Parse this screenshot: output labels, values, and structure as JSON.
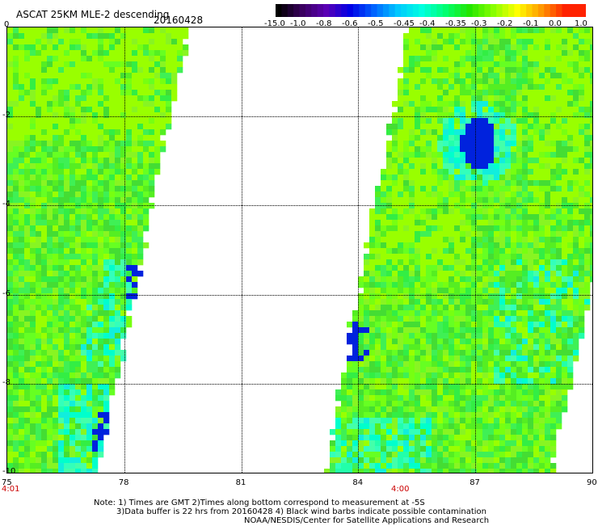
{
  "header": {
    "title": "ASCAT 25KM MLE-2 descending",
    "date": "20160428"
  },
  "colorbar": {
    "labels": [
      "-15.0",
      "-1.0",
      "-0.8",
      "-0.6",
      "-0.5",
      "-0.45",
      "-0.4",
      "-0.35",
      "-0.3",
      "-0.2",
      "-0.1",
      "0.0",
      "1.0"
    ],
    "colors": [
      "#000000",
      "#3a0060",
      "#5a00b4",
      "#0000e6",
      "#0064ff",
      "#00c8ff",
      "#00ffe0",
      "#00ff70",
      "#22e600",
      "#88ff00",
      "#ffff00",
      "#ff9900",
      "#ff2200"
    ]
  },
  "axes": {
    "x_ticks": [
      "75",
      "78",
      "81",
      "84",
      "87",
      "90"
    ],
    "y_ticks": [
      "0",
      "-2",
      "-4",
      "-6",
      "-8",
      "-10"
    ],
    "xlim": [
      75,
      90
    ],
    "ylim": [
      -10,
      0
    ],
    "times": [
      "4:01",
      "4:00"
    ]
  },
  "notes": {
    "line1": "Note: 1) Times are GMT 2)Times along bottom correspond to measurement at -5S",
    "line2": "3)Data buffer is 22 hrs from 20160428 4) Black wind barbs indicate possible contamination",
    "line3": "NOAA/NESDIS/Center for Satellite Applications and Research"
  },
  "colors": {
    "swath_green": "#33ee22",
    "swath_yellowgreen": "#99ff00",
    "swath_cyan": "#00ffcc",
    "swath_blue": "#0022dd"
  }
}
